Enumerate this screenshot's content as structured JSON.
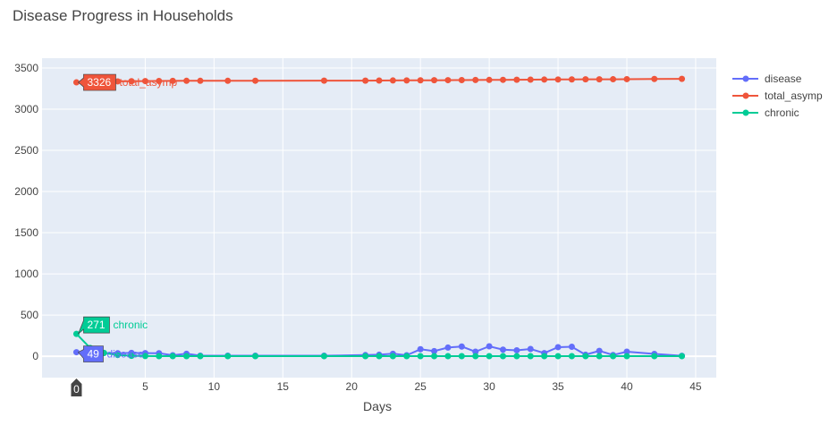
{
  "chart_data": {
    "type": "line",
    "mode": "lines+markers",
    "title": "Disease Progress in Households",
    "xlabel": "Days",
    "ylabel": "",
    "xlim": [
      -2.5,
      46.5
    ],
    "ylim": [
      -260,
      3620
    ],
    "xticks": [
      5,
      10,
      15,
      20,
      25,
      30,
      35,
      40,
      45
    ],
    "yticks": [
      0,
      500,
      1000,
      1500,
      2000,
      2500,
      3000,
      3500
    ],
    "grid": true,
    "legend_position": "top-right",
    "background": "#e5ecf6",
    "x": [
      0,
      1,
      2,
      3,
      4,
      5,
      6,
      7,
      8,
      9,
      11,
      13,
      18,
      21,
      22,
      23,
      24,
      25,
      26,
      27,
      28,
      29,
      30,
      31,
      32,
      33,
      34,
      35,
      36,
      37,
      38,
      39,
      40,
      42,
      44
    ],
    "series": [
      {
        "name": "disease",
        "color": "#636efa",
        "values": [
          49,
          42,
          38,
          36,
          40,
          38,
          36,
          12,
          30,
          6,
          6,
          6,
          6,
          14,
          18,
          30,
          12,
          85,
          62,
          105,
          118,
          55,
          120,
          80,
          72,
          88,
          38,
          110,
          115,
          18,
          65,
          15,
          55,
          28,
          5
        ]
      },
      {
        "name": "total_asymp",
        "color": "#ef553b",
        "values": [
          3326,
          3332,
          3336,
          3338,
          3340,
          3342,
          3343,
          3344,
          3345,
          3345,
          3345,
          3346,
          3347,
          3347,
          3348,
          3349,
          3350,
          3351,
          3352,
          3353,
          3354,
          3355,
          3356,
          3357,
          3358,
          3359,
          3360,
          3361,
          3362,
          3363,
          3363,
          3364,
          3365,
          3367,
          3369
        ]
      },
      {
        "name": "chronic",
        "color": "#00cc96",
        "values": [
          271,
          100,
          40,
          15,
          5,
          2,
          1,
          1,
          1,
          1,
          1,
          1,
          1,
          1,
          1,
          1,
          1,
          1,
          1,
          1,
          1,
          1,
          1,
          1,
          1,
          1,
          1,
          1,
          1,
          1,
          1,
          1,
          1,
          1,
          1
        ]
      }
    ],
    "hover": {
      "x_label": "0",
      "points": [
        {
          "series": "total_asymp",
          "value": "3326"
        },
        {
          "series": "chronic",
          "value": "271"
        },
        {
          "series": "disease",
          "value": "49"
        }
      ]
    }
  }
}
